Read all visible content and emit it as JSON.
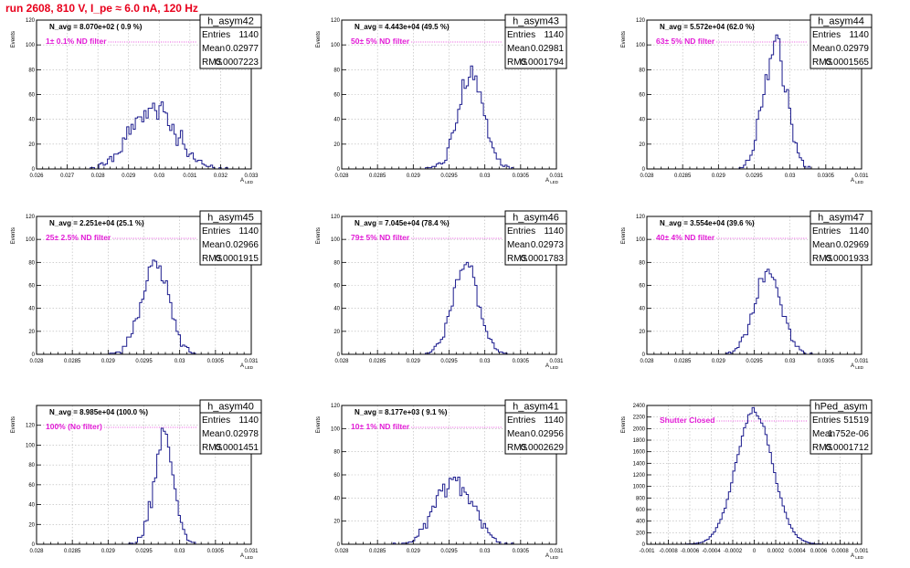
{
  "page_title": "run 2608,   810 V, I_pe ≈ 6.0 nA, 120 Hz",
  "colors": {
    "title": "#e8001c",
    "histogram": "#1c1c8e",
    "annotation": "#e21bd6"
  },
  "chart_data": [
    {
      "type": "histogram",
      "name": "h_asym42",
      "entries": "1140",
      "mean": "0.02977",
      "rms": "0.0007223",
      "navg": "N_avg = 8.070e+02 ( 0.9 %)",
      "filter": "1± 0.1% ND filter",
      "xlabel": "A_LED",
      "ylabel": "Events",
      "xlim": [
        0.026,
        0.033
      ],
      "ylim": [
        0,
        120
      ],
      "xticks": [
        0.026,
        0.027,
        0.028,
        0.029,
        0.03,
        0.031,
        0.032,
        0.033
      ],
      "xtick_labels": [
        "0.026",
        "0.027",
        "0.028",
        "0.029",
        "0.03",
        "0.031",
        "0.032",
        "0.033"
      ],
      "yticks": [
        0,
        20,
        40,
        60,
        80,
        100,
        120
      ],
      "ytick_labels": [
        "0",
        "20",
        "40",
        "60",
        "80",
        "100",
        "120"
      ],
      "shape": {
        "mu": 0.02977,
        "sigma": 0.00072,
        "peak": 50
      }
    },
    {
      "type": "histogram",
      "name": "h_asym43",
      "entries": "1140",
      "mean": "0.02981",
      "rms": "0.0001794",
      "navg": "N_avg = 4.443e+04 (49.5 %)",
      "filter": "50± 5% ND filter",
      "xlabel": "A_LED",
      "ylabel": "Events",
      "xlim": [
        0.028,
        0.031
      ],
      "ylim": [
        0,
        120
      ],
      "xticks": [
        0.028,
        0.0285,
        0.029,
        0.0295,
        0.03,
        0.0305,
        0.031
      ],
      "xtick_labels": [
        "0.028",
        "0.0285",
        "0.029",
        "0.0295",
        "0.03",
        "0.0305",
        "0.031"
      ],
      "yticks": [
        0,
        20,
        40,
        60,
        80,
        100,
        120
      ],
      "ytick_labels": [
        "0",
        "20",
        "40",
        "60",
        "80",
        "100",
        "120"
      ],
      "shape": {
        "mu": 0.02981,
        "sigma": 0.00018,
        "peak": 78
      }
    },
    {
      "type": "histogram",
      "name": "h_asym44",
      "entries": "1140",
      "mean": "0.02979",
      "rms": "0.0001565",
      "navg": "N_avg = 5.572e+04 (62.0 %)",
      "filter": "63± 5% ND filter",
      "xlabel": "A_LED",
      "ylabel": "Events",
      "xlim": [
        0.028,
        0.031
      ],
      "ylim": [
        0,
        120
      ],
      "xticks": [
        0.028,
        0.0285,
        0.029,
        0.0295,
        0.03,
        0.0305,
        0.031
      ],
      "xtick_labels": [
        "0.028",
        "0.0285",
        "0.029",
        "0.0295",
        "0.03",
        "0.0305",
        "0.031"
      ],
      "yticks": [
        0,
        20,
        40,
        60,
        80,
        100,
        120
      ],
      "ytick_labels": [
        "0",
        "20",
        "40",
        "60",
        "80",
        "100",
        "120"
      ],
      "shape": {
        "mu": 0.02979,
        "sigma": 0.00016,
        "peak": 102
      }
    },
    {
      "type": "histogram",
      "name": "h_asym45",
      "entries": "1140",
      "mean": "0.02966",
      "rms": "0.0001915",
      "navg": "N_avg = 2.251e+04 (25.1 %)",
      "filter": "25± 2.5% ND filter",
      "xlabel": "A_LED",
      "ylabel": "Events",
      "xlim": [
        0.028,
        0.031
      ],
      "ylim": [
        0,
        120
      ],
      "xticks": [
        0.028,
        0.0285,
        0.029,
        0.0295,
        0.03,
        0.0305,
        0.031
      ],
      "xtick_labels": [
        "0.028",
        "0.0285",
        "0.029",
        "0.0295",
        "0.03",
        "0.0305",
        "0.031"
      ],
      "yticks": [
        0,
        20,
        40,
        60,
        80,
        100,
        120
      ],
      "ytick_labels": [
        "0",
        "20",
        "40",
        "60",
        "80",
        "100",
        "120"
      ],
      "shape": {
        "mu": 0.02966,
        "sigma": 0.00019,
        "peak": 78
      }
    },
    {
      "type": "histogram",
      "name": "h_asym46",
      "entries": "1140",
      "mean": "0.02973",
      "rms": "0.0001783",
      "navg": "N_avg = 7.045e+04 (78.4 %)",
      "filter": "79± 5% ND filter",
      "xlabel": "A_LED",
      "ylabel": "Events",
      "xlim": [
        0.028,
        0.031
      ],
      "ylim": [
        0,
        120
      ],
      "xticks": [
        0.028,
        0.0285,
        0.029,
        0.0295,
        0.03,
        0.0305,
        0.031
      ],
      "xtick_labels": [
        "0.028",
        "0.0285",
        "0.029",
        "0.0295",
        "0.03",
        "0.0305",
        "0.031"
      ],
      "yticks": [
        0,
        20,
        40,
        60,
        80,
        100,
        120
      ],
      "ytick_labels": [
        "0",
        "20",
        "40",
        "60",
        "80",
        "100",
        "120"
      ],
      "shape": {
        "mu": 0.02973,
        "sigma": 0.00018,
        "peak": 80
      }
    },
    {
      "type": "histogram",
      "name": "h_asym47",
      "entries": "1140",
      "mean": "0.02969",
      "rms": "0.0001933",
      "navg": "N_avg = 3.554e+04 (39.6 %)",
      "filter": "40± 4% ND filter",
      "xlabel": "A_LED",
      "ylabel": "Events",
      "xlim": [
        0.028,
        0.031
      ],
      "ylim": [
        0,
        120
      ],
      "xticks": [
        0.028,
        0.0285,
        0.029,
        0.0295,
        0.03,
        0.0305,
        0.031
      ],
      "xtick_labels": [
        "0.028",
        "0.0285",
        "0.029",
        "0.0295",
        "0.03",
        "0.0305",
        "0.031"
      ],
      "yticks": [
        0,
        20,
        40,
        60,
        80,
        100,
        120
      ],
      "ytick_labels": [
        "0",
        "20",
        "40",
        "60",
        "80",
        "100",
        "120"
      ],
      "shape": {
        "mu": 0.02969,
        "sigma": 0.00019,
        "peak": 72
      }
    },
    {
      "type": "histogram",
      "name": "h_asym40",
      "entries": "1140",
      "mean": "0.02978",
      "rms": "0.0001451",
      "navg": "N_avg = 8.985e+04 (100.0 %)",
      "filter": "100% (No filter)",
      "xlabel": "A_LED",
      "ylabel": "Events",
      "xlim": [
        0.028,
        0.031
      ],
      "ylim": [
        0,
        140
      ],
      "xticks": [
        0.028,
        0.0285,
        0.029,
        0.0295,
        0.03,
        0.0305,
        0.031
      ],
      "xtick_labels": [
        "0.028",
        "0.0285",
        "0.029",
        "0.0295",
        "0.03",
        "0.0305",
        "0.031"
      ],
      "yticks": [
        0,
        20,
        40,
        60,
        80,
        100,
        120
      ],
      "ytick_labels": [
        "0",
        "20",
        "40",
        "60",
        "80",
        "100",
        "120"
      ],
      "shape": {
        "mu": 0.02978,
        "sigma": 0.00014,
        "peak": 108
      }
    },
    {
      "type": "histogram",
      "name": "h_asym41",
      "entries": "1140",
      "mean": "0.02956",
      "rms": "0.0002629",
      "navg": "N_avg = 8.177e+03 ( 9.1 %)",
      "filter": "10± 1% ND filter",
      "xlabel": "A_LED",
      "ylabel": "Events",
      "xlim": [
        0.028,
        0.031
      ],
      "ylim": [
        0,
        120
      ],
      "xticks": [
        0.028,
        0.0285,
        0.029,
        0.0295,
        0.03,
        0.0305,
        0.031
      ],
      "xtick_labels": [
        "0.028",
        "0.0285",
        "0.029",
        "0.0295",
        "0.03",
        "0.0305",
        "0.031"
      ],
      "yticks": [
        0,
        20,
        40,
        60,
        80,
        100,
        120
      ],
      "ytick_labels": [
        "0",
        "20",
        "40",
        "60",
        "80",
        "100",
        "120"
      ],
      "shape": {
        "mu": 0.02956,
        "sigma": 0.00026,
        "peak": 55
      }
    },
    {
      "type": "histogram",
      "name": "hPed_asym",
      "entries": "51519",
      "mean": "1.752e-06",
      "rms": "0.0001712",
      "navg": "",
      "filter": "Shutter Closed",
      "xlabel": "A_LED",
      "ylabel": "Events",
      "xlim": [
        -0.001,
        0.001
      ],
      "ylim": [
        0,
        2400
      ],
      "xticks": [
        -0.001,
        -0.0008,
        -0.0006,
        -0.0004,
        -0.0002,
        0,
        0.0002,
        0.0004,
        0.0006,
        0.0008,
        0.001
      ],
      "xtick_labels": [
        "-0.001",
        "-0.0008",
        "-0.0006",
        "-0.0004",
        "-0.0002",
        "0",
        "0.0002",
        "0.0004",
        "0.0006",
        "0.0008",
        "0.001"
      ],
      "yticks": [
        0,
        200,
        400,
        600,
        800,
        1000,
        1200,
        1400,
        1600,
        1800,
        2000,
        2200,
        2400
      ],
      "ytick_labels": [
        "0",
        "200",
        "400",
        "600",
        "800",
        "1000",
        "1200",
        "1400",
        "1600",
        "1800",
        "2000",
        "2200",
        "2400"
      ],
      "shape": {
        "mu": 0.0,
        "sigma": 0.00017,
        "peak": 2300
      }
    }
  ]
}
